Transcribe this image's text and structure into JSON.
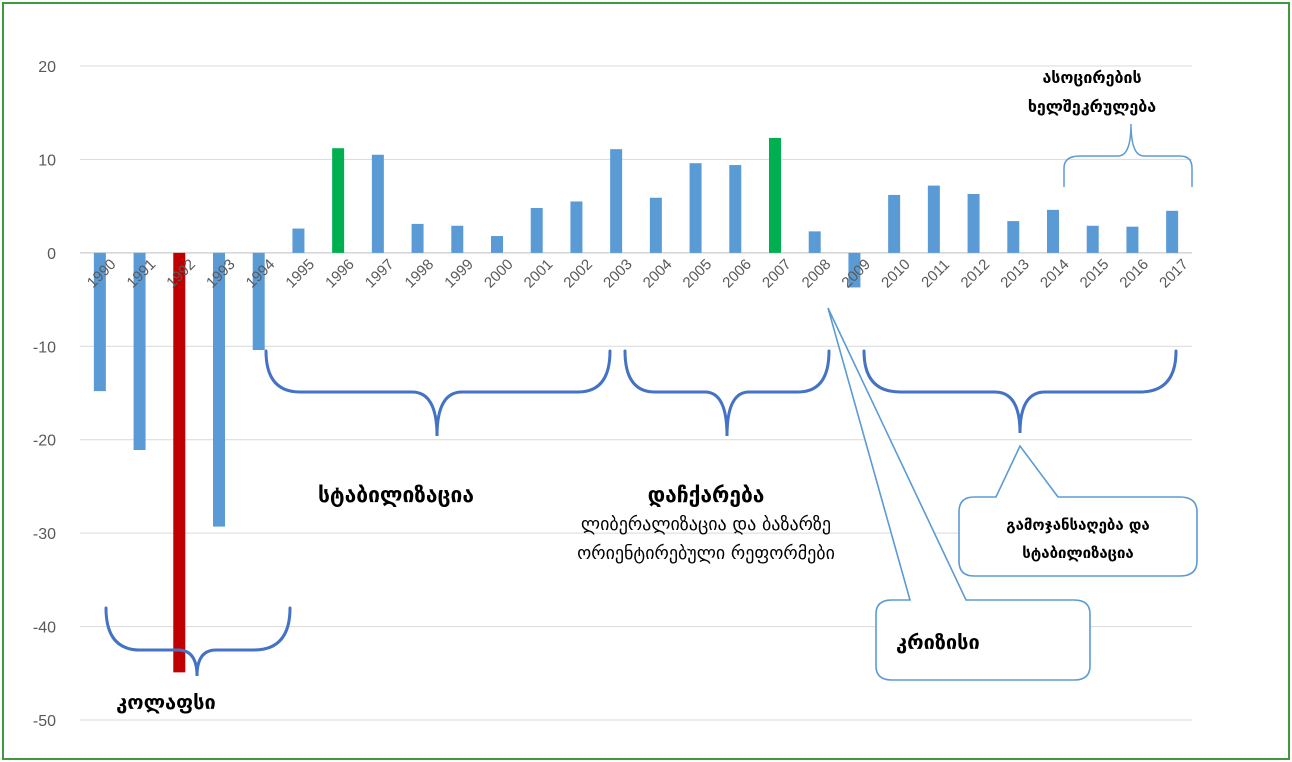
{
  "chart_data": {
    "type": "bar",
    "categories": [
      "1990",
      "1991",
      "1992",
      "1993",
      "1994",
      "1995",
      "1996",
      "1997",
      "1998",
      "1999",
      "2000",
      "2001",
      "2002",
      "2003",
      "2004",
      "2005",
      "2006",
      "2007",
      "2008",
      "2009",
      "2010",
      "2011",
      "2012",
      "2013",
      "2014",
      "2015",
      "2016",
      "2017"
    ],
    "values": [
      -14.8,
      -21.1,
      -44.9,
      -29.3,
      -10.4,
      2.6,
      11.2,
      10.5,
      3.1,
      2.9,
      1.8,
      4.8,
      5.5,
      11.1,
      5.9,
      9.6,
      9.4,
      12.3,
      2.3,
      -3.7,
      6.2,
      7.2,
      6.3,
      3.4,
      4.6,
      2.9,
      2.8,
      4.5
    ],
    "bar_colors": [
      "#5b9bd5",
      "#5b9bd5",
      "#c00000",
      "#5b9bd5",
      "#5b9bd5",
      "#5b9bd5",
      "#00b050",
      "#5b9bd5",
      "#5b9bd5",
      "#5b9bd5",
      "#5b9bd5",
      "#5b9bd5",
      "#5b9bd5",
      "#5b9bd5",
      "#5b9bd5",
      "#5b9bd5",
      "#5b9bd5",
      "#00b050",
      "#5b9bd5",
      "#5b9bd5",
      "#5b9bd5",
      "#5b9bd5",
      "#5b9bd5",
      "#5b9bd5",
      "#5b9bd5",
      "#5b9bd5",
      "#5b9bd5",
      "#5b9bd5"
    ],
    "ylim": [
      -50,
      20
    ],
    "yticks": [
      "20",
      "10",
      "0",
      "-10",
      "-20",
      "-30",
      "-40",
      "-50"
    ],
    "grid": true,
    "title": "",
    "xlabel": "",
    "ylabel": ""
  },
  "annotations": {
    "collapse": "კოლაფსი",
    "stabilization": "სტაბილიზაცია",
    "acceleration_title": "დაჩქარება",
    "acceleration_line1": "ლიბერალიზაცია და ბაზარზე",
    "acceleration_line2": "ორიენტირებული რეფორმები",
    "recovery_line1": "გამოჯანსაღება და",
    "recovery_line2": "სტაბილიზაცია",
    "crisis": "კრიზისი",
    "association_line1": "ასოცირების",
    "association_line2": "ხელშეკრულება"
  },
  "colors": {
    "default_bar": "#5b9bd5",
    "collapse_bar": "#c00000",
    "peak_bar": "#00b050",
    "brace": "#4472c4",
    "callout": "#5b9bd5",
    "frame": "#3f9a3f",
    "grid": "#d9d9d9"
  }
}
